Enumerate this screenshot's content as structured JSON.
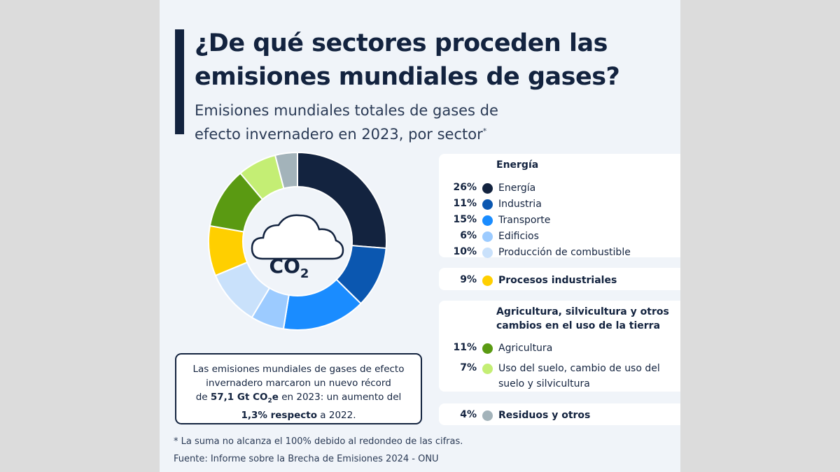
{
  "title": "¿De qué sectores proceden las emisiones mundiales de gases?",
  "subtitle": "Emisiones mundiales totales de gases de efecto invernadero en 2023, por sector",
  "subtitle_mark": "*",
  "icon_text": {
    "co": "CO",
    "sub": "2"
  },
  "chart_data": {
    "type": "pie",
    "title": "Emisiones mundiales totales de gases de efecto invernadero en 2023, por sector",
    "unit": "%",
    "groups": [
      {
        "name": "Energía",
        "items": [
          {
            "label": "Energía",
            "value": 26,
            "pct": "26%",
            "color": "#13233f"
          },
          {
            "label": "Industria",
            "value": 11,
            "pct": "11%",
            "color": "#0b57b0"
          },
          {
            "label": "Transporte",
            "value": 15,
            "pct": "15%",
            "color": "#1a8cff"
          },
          {
            "label": "Edificios",
            "value": 6,
            "pct": "6%",
            "color": "#9ccbff"
          },
          {
            "label": "Producción de combustible",
            "value": 10,
            "pct": "10%",
            "color": "#c9e1fb"
          }
        ]
      },
      {
        "name": "",
        "items": [
          {
            "label": "Procesos industriales",
            "value": 9,
            "pct": "9%",
            "color": "#ffcf00"
          }
        ]
      },
      {
        "name": "Agricultura, silvicultura y otros cambios en el uso de la tierra",
        "items": [
          {
            "label": "Agricultura",
            "value": 11,
            "pct": "11%",
            "color": "#5a9a12"
          },
          {
            "label": "Uso del suelo, cambio de uso del suelo y silvicultura",
            "value": 7,
            "pct": "7%",
            "color": "#c4ee74"
          }
        ]
      },
      {
        "name": "",
        "items": [
          {
            "label": "Residuos y otros",
            "value": 4,
            "pct": "4%",
            "color": "#a3b3ba"
          }
        ]
      }
    ]
  },
  "note": {
    "l1": "Las emisiones mundiales de gases de efecto",
    "l2": "invernadero marcaron un nuevo récord",
    "l3a": "de ",
    "l3b": "57,1 Gt CO",
    "l3c": "2",
    "l3d": "e",
    "l3e": " en 2023: un aumento del",
    "l4a": "1,3% respecto",
    "l4b": " a 2022."
  },
  "footnote": "* La suma no alcanza el 100% debido al redondeo de las cifras.",
  "source": "Fuente: Informe sobre la Brecha de Emisiones 2024 - ONU"
}
